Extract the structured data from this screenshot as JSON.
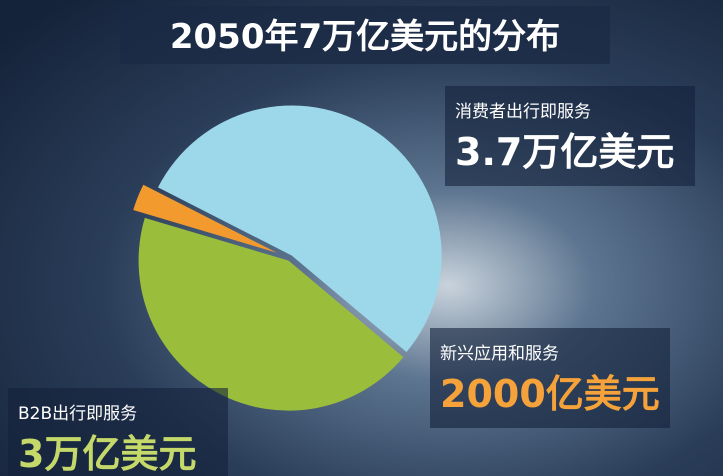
{
  "chart_data": {
    "type": "pie",
    "title": "2050年7万亿美元的分布",
    "categories": [
      "消费者出行即服务",
      "B2B出行即服务",
      "新兴应用和服务"
    ],
    "values": [
      3.7,
      3,
      0.2
    ],
    "value_labels": [
      "3.7万亿美元",
      "3万亿美元",
      "2000亿美元"
    ],
    "colors": [
      "#9dd8ea",
      "#9bbd3c",
      "#f39a2e"
    ]
  }
}
